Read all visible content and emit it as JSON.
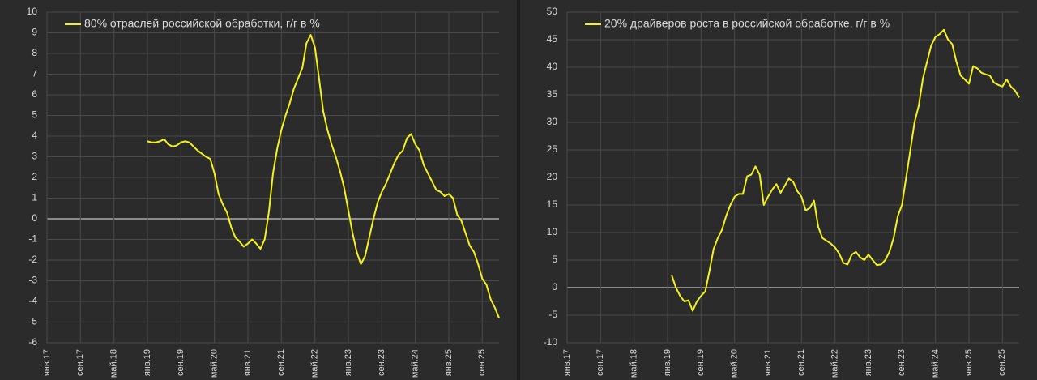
{
  "chart_data": [
    {
      "type": "line",
      "categories": [
        "янв.17",
        null,
        null,
        null,
        null,
        null,
        null,
        null,
        "сен.17",
        null,
        null,
        null,
        null,
        null,
        null,
        null,
        "май.18",
        null,
        null,
        null,
        null,
        null,
        null,
        null,
        "янв.19",
        null,
        null,
        null,
        null,
        null,
        null,
        null,
        "сен.19",
        null,
        null,
        null,
        null,
        null,
        null,
        null,
        "май.20",
        null,
        null,
        null,
        null,
        null,
        null,
        null,
        "янв.21",
        null,
        null,
        null,
        null,
        null,
        null,
        null,
        "сен.21",
        null,
        null,
        null,
        null,
        null,
        null,
        null,
        "май.22",
        null,
        null,
        null,
        null,
        null,
        null,
        null,
        "янв.23",
        null,
        null,
        null,
        null,
        null,
        null,
        null,
        "сен.23",
        null,
        null,
        null,
        null,
        null,
        null,
        null,
        "май.24",
        null,
        null,
        null,
        null,
        null,
        null,
        null,
        "янв.25",
        null,
        null,
        null,
        null,
        null,
        null,
        null,
        "сен.25",
        null,
        null,
        null,
        null
      ],
      "series": [
        {
          "name": "80% отраслей российской обработки, г/г в %",
          "color": "#f2f21c",
          "values": [
            null,
            null,
            null,
            null,
            null,
            null,
            null,
            null,
            null,
            null,
            null,
            null,
            null,
            null,
            null,
            null,
            null,
            null,
            null,
            null,
            null,
            null,
            null,
            null,
            3.75,
            3.7,
            3.7,
            3.75,
            3.85,
            3.6,
            3.5,
            3.55,
            3.7,
            3.75,
            3.7,
            3.5,
            3.3,
            3.15,
            3.0,
            2.9,
            2.2,
            1.2,
            0.7,
            0.3,
            -0.4,
            -0.9,
            -1.1,
            -1.35,
            -1.2,
            -1.0,
            -1.2,
            -1.45,
            -1.0,
            0.3,
            2.2,
            3.4,
            4.3,
            5.0,
            5.6,
            6.3,
            6.8,
            7.3,
            8.5,
            8.9,
            8.3,
            6.8,
            5.2,
            4.3,
            3.6,
            3.0,
            2.3,
            1.5,
            0.4,
            -0.7,
            -1.6,
            -2.2,
            -1.8,
            -0.9,
            0.0,
            0.8,
            1.3,
            1.7,
            2.2,
            2.7,
            3.1,
            3.3,
            3.9,
            4.1,
            3.6,
            3.3,
            2.6,
            2.2,
            1.8,
            1.4,
            1.3,
            1.1,
            1.2,
            1.0,
            0.2,
            -0.1,
            -0.7,
            -1.3,
            -1.6,
            -2.2,
            -2.9,
            -3.2,
            -3.9,
            -4.3,
            -4.8
          ]
        }
      ],
      "ylim": [
        -6,
        10
      ],
      "yticks": [
        -6,
        -5,
        -4,
        -3,
        -2,
        -1,
        0,
        1,
        2,
        3,
        4,
        5,
        6,
        7,
        8,
        9,
        10
      ],
      "grid": true
    },
    {
      "type": "line",
      "categories": [
        "янв.17",
        null,
        null,
        null,
        null,
        null,
        null,
        null,
        "сен.17",
        null,
        null,
        null,
        null,
        null,
        null,
        null,
        "май.18",
        null,
        null,
        null,
        null,
        null,
        null,
        null,
        "янв.19",
        null,
        null,
        null,
        null,
        null,
        null,
        null,
        "сен.19",
        null,
        null,
        null,
        null,
        null,
        null,
        null,
        "май.20",
        null,
        null,
        null,
        null,
        null,
        null,
        null,
        "янв.21",
        null,
        null,
        null,
        null,
        null,
        null,
        null,
        "сен.21",
        null,
        null,
        null,
        null,
        null,
        null,
        null,
        "май.22",
        null,
        null,
        null,
        null,
        null,
        null,
        null,
        "янв.23",
        null,
        null,
        null,
        null,
        null,
        null,
        null,
        "сен.23",
        null,
        null,
        null,
        null,
        null,
        null,
        null,
        "май.24",
        null,
        null,
        null,
        null,
        null,
        null,
        null,
        "янв.25",
        null,
        null,
        null,
        null,
        null,
        null,
        null,
        "сен.25",
        null,
        null,
        null,
        null
      ],
      "series": [
        {
          "name": "20% драйверов роста в российской обработке, г/г в %",
          "color": "#f2f21c",
          "values": [
            null,
            null,
            null,
            null,
            null,
            null,
            null,
            null,
            null,
            null,
            null,
            null,
            null,
            null,
            null,
            null,
            null,
            null,
            null,
            null,
            null,
            null,
            null,
            null,
            null,
            2.2,
            0,
            -1.5,
            -2.5,
            -2.3,
            -4.2,
            -2.5,
            -1.5,
            -0.7,
            3,
            7,
            9,
            10.5,
            13,
            15,
            16.5,
            17,
            17,
            20.2,
            20.5,
            22,
            20.5,
            15,
            16.5,
            17.8,
            18.8,
            17.2,
            18.5,
            19.8,
            19.2,
            17.5,
            16.5,
            14,
            14.5,
            15.8,
            11,
            9,
            8.5,
            8,
            7.3,
            6.2,
            4.5,
            4.2,
            6,
            6.5,
            5.5,
            5,
            6,
            5,
            4.1,
            4.2,
            5,
            6.5,
            9,
            13,
            15,
            20,
            25,
            30,
            33,
            38,
            41,
            44,
            45.5,
            46,
            46.8,
            45,
            44.2,
            41,
            38.5,
            37.8,
            37,
            40.2,
            39.8,
            39,
            38.7,
            38.5,
            37.2,
            36.8,
            36.5,
            37.8,
            36.5,
            35.8,
            34.5
          ]
        }
      ],
      "ylim": [
        -10,
        50
      ],
      "yticks": [
        -10,
        -5,
        0,
        5,
        10,
        15,
        20,
        25,
        30,
        35,
        40,
        45,
        50
      ],
      "grid": true
    }
  ]
}
